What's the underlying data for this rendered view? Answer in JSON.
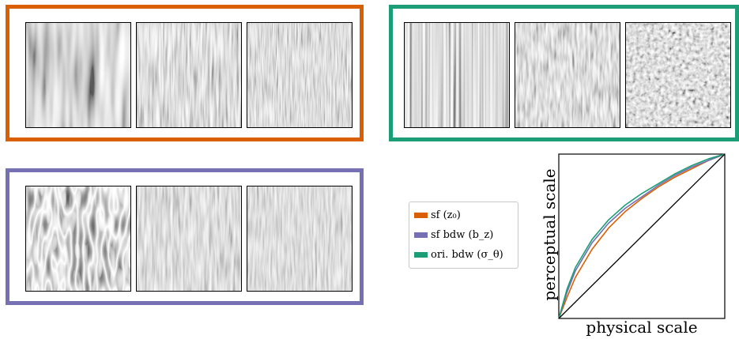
{
  "legend": {
    "items": [
      {
        "label": "sf (z₀)",
        "color": "#d95f02"
      },
      {
        "label": "sf bdw (b_z)",
        "color": "#7570b3"
      },
      {
        "label": "ori. bdw (σ_θ)",
        "color": "#1b9e77"
      }
    ]
  },
  "groups": {
    "spatial_frequency": {
      "border_color": "#d95f02",
      "textures": [
        "coarse-vertical-texture",
        "medium-vertical-texture",
        "fine-vertical-texture"
      ]
    },
    "orientation_bandwidth": {
      "border_color": "#1b9e77",
      "textures": [
        "narrow-orientation-texture",
        "medium-orientation-texture",
        "broad-orientation-texture"
      ]
    },
    "frequency_bandwidth": {
      "border_color": "#7570b3",
      "textures": [
        "narrowband-grating-texture",
        "medium-band-texture",
        "broadband-texture"
      ]
    }
  },
  "chart_data": {
    "type": "line",
    "xlabel": "physical scale",
    "ylabel": "perceptual scale",
    "xlim": [
      0,
      1
    ],
    "ylim": [
      0,
      1
    ],
    "grid": false,
    "legend_position": "left of plot",
    "series": [
      {
        "name": "sf (z₀)",
        "color": "#d95f02",
        "x": [
          0,
          0.05,
          0.1,
          0.2,
          0.3,
          0.4,
          0.5,
          0.6,
          0.7,
          0.8,
          0.9,
          1
        ],
        "y": [
          0,
          0.13,
          0.25,
          0.42,
          0.55,
          0.65,
          0.73,
          0.8,
          0.86,
          0.91,
          0.96,
          1
        ]
      },
      {
        "name": "sf bdw (b_z)",
        "color": "#7570b3",
        "x": [
          0,
          0.05,
          0.1,
          0.2,
          0.3,
          0.4,
          0.5,
          0.6,
          0.7,
          0.8,
          0.9,
          1
        ],
        "y": [
          0,
          0.16,
          0.29,
          0.46,
          0.58,
          0.67,
          0.74,
          0.81,
          0.87,
          0.92,
          0.96,
          1
        ]
      },
      {
        "name": "ori. bdw (σ_θ)",
        "color": "#1b9e77",
        "x": [
          0,
          0.05,
          0.1,
          0.2,
          0.3,
          0.4,
          0.5,
          0.6,
          0.7,
          0.8,
          0.9,
          1
        ],
        "y": [
          0,
          0.18,
          0.31,
          0.48,
          0.6,
          0.69,
          0.76,
          0.82,
          0.88,
          0.93,
          0.97,
          1
        ]
      },
      {
        "name": "",
        "color": "#000000",
        "x": [
          0,
          1
        ],
        "y": [
          0,
          1
        ]
      }
    ]
  }
}
